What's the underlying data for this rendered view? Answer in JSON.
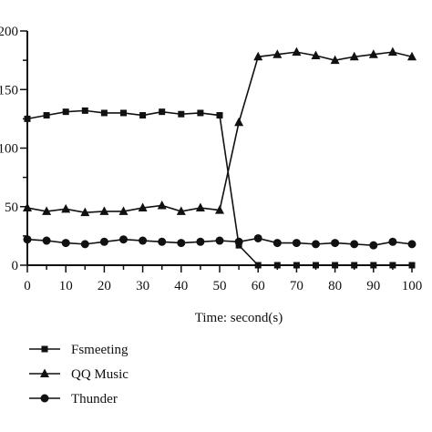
{
  "chart_data": {
    "type": "line",
    "xlabel": "Time: second(s)",
    "ylabel": "",
    "xlim": [
      0,
      100
    ],
    "ylim": [
      0,
      200
    ],
    "x_ticks": [
      "0",
      "10",
      "20",
      "30",
      "40",
      "50",
      "60",
      "70",
      "80",
      "90",
      "100"
    ],
    "y_ticks": [
      "0",
      "50",
      "100",
      "150",
      "200"
    ],
    "grid": false,
    "legend_position": "bottom-left",
    "x": [
      0,
      5,
      10,
      15,
      20,
      25,
      30,
      35,
      40,
      45,
      50,
      55,
      60,
      65,
      70,
      75,
      80,
      85,
      90,
      95,
      100
    ],
    "series": [
      {
        "name": "Fsmeeting",
        "marker": "square",
        "values": [
          125,
          128,
          131,
          132,
          130,
          130,
          128,
          131,
          129,
          130,
          128,
          17,
          0,
          0,
          0,
          0,
          0,
          0,
          0,
          0,
          0
        ]
      },
      {
        "name": "QQ Music",
        "marker": "triangle",
        "values": [
          49,
          46,
          48,
          45,
          46,
          46,
          49,
          51,
          46,
          49,
          47,
          122,
          178,
          180,
          182,
          179,
          175,
          178,
          180,
          182,
          178
        ]
      },
      {
        "name": "Thunder",
        "marker": "circle",
        "values": [
          22,
          21,
          19,
          18,
          20,
          22,
          21,
          20,
          19,
          20,
          21,
          20,
          23,
          19,
          19,
          18,
          19,
          18,
          17,
          20,
          18
        ]
      }
    ]
  }
}
